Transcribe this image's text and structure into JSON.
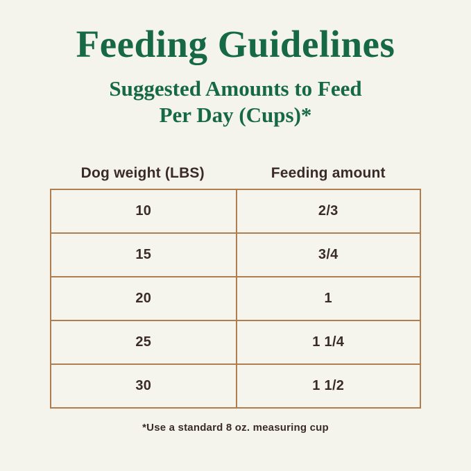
{
  "page": {
    "title": "Feeding Guidelines",
    "subtitle_line1": "Suggested Amounts to Feed",
    "subtitle_line2": "Per Day (Cups)*",
    "footnote": "*Use a standard 8 oz. measuring cup"
  },
  "table": {
    "headers": {
      "weight": "Dog weight (LBS)",
      "amount": "Feeding amount"
    },
    "rows": [
      {
        "weight": "10",
        "amount": "2/3"
      },
      {
        "weight": "15",
        "amount": "3/4"
      },
      {
        "weight": "20",
        "amount": "1"
      },
      {
        "weight": "25",
        "amount": "1 1/4"
      },
      {
        "weight": "30",
        "amount": "1 1/2"
      }
    ]
  },
  "colors": {
    "background": "#f4f4ed",
    "heading_green": "#176945",
    "table_border_tan": "#b07e4e",
    "text_dark_brown": "#3a2b27"
  },
  "chart_data": {
    "type": "table",
    "title": "Feeding Guidelines",
    "subtitle": "Suggested Amounts to Feed Per Day (Cups)*",
    "columns": [
      "Dog weight (LBS)",
      "Feeding amount"
    ],
    "rows": [
      [
        "10",
        "2/3"
      ],
      [
        "15",
        "3/4"
      ],
      [
        "20",
        "1"
      ],
      [
        "25",
        "1 1/4"
      ],
      [
        "30",
        "1 1/2"
      ]
    ],
    "footnote": "*Use a standard 8 oz. measuring cup"
  }
}
